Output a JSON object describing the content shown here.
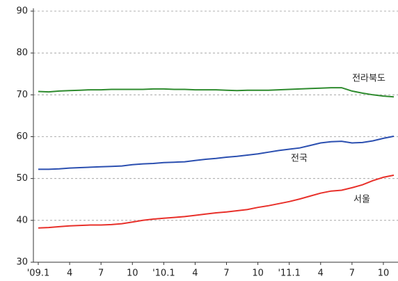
{
  "chart_data": {
    "type": "line",
    "categories": [
      "'09.1",
      null,
      null,
      "4",
      null,
      null,
      "7",
      null,
      null,
      "10",
      null,
      null,
      "'10.1",
      null,
      null,
      "4",
      null,
      null,
      "7",
      null,
      null,
      "10",
      null,
      null,
      "'11.1",
      null,
      null,
      "4",
      null,
      null,
      "7",
      null,
      null,
      "10",
      null
    ],
    "series": [
      {
        "name": "전라북도",
        "color": "#2e8b2e",
        "values": [
          70.8,
          70.7,
          70.9,
          71.0,
          71.1,
          71.2,
          71.2,
          71.3,
          71.3,
          71.3,
          71.3,
          71.4,
          71.4,
          71.3,
          71.3,
          71.2,
          71.2,
          71.2,
          71.1,
          71.0,
          71.1,
          71.1,
          71.1,
          71.2,
          71.3,
          71.4,
          71.5,
          71.6,
          71.7,
          71.7,
          70.9,
          70.4,
          70.0,
          69.7,
          69.5
        ]
      },
      {
        "name": "전국",
        "color": "#2b4fb0",
        "values": [
          52.2,
          52.2,
          52.3,
          52.5,
          52.6,
          52.7,
          52.8,
          52.9,
          53.0,
          53.3,
          53.5,
          53.6,
          53.8,
          53.9,
          54.0,
          54.3,
          54.6,
          54.8,
          55.1,
          55.3,
          55.6,
          55.9,
          56.3,
          56.7,
          57.0,
          57.3,
          57.9,
          58.5,
          58.8,
          58.9,
          58.5,
          58.6,
          59.0,
          59.6,
          60.1
        ]
      },
      {
        "name": "서울",
        "color": "#e8302a",
        "values": [
          38.2,
          38.3,
          38.5,
          38.7,
          38.8,
          38.9,
          38.9,
          39.0,
          39.2,
          39.6,
          40.0,
          40.3,
          40.5,
          40.7,
          40.9,
          41.2,
          41.5,
          41.8,
          42.0,
          42.3,
          42.6,
          43.1,
          43.5,
          44.0,
          44.5,
          45.1,
          45.8,
          46.5,
          47.0,
          47.2,
          47.8,
          48.5,
          49.5,
          50.3,
          50.8
        ]
      }
    ],
    "ylim": [
      30,
      90
    ],
    "yticks": [
      30,
      40,
      50,
      60,
      70,
      80,
      90
    ],
    "grid": true
  }
}
